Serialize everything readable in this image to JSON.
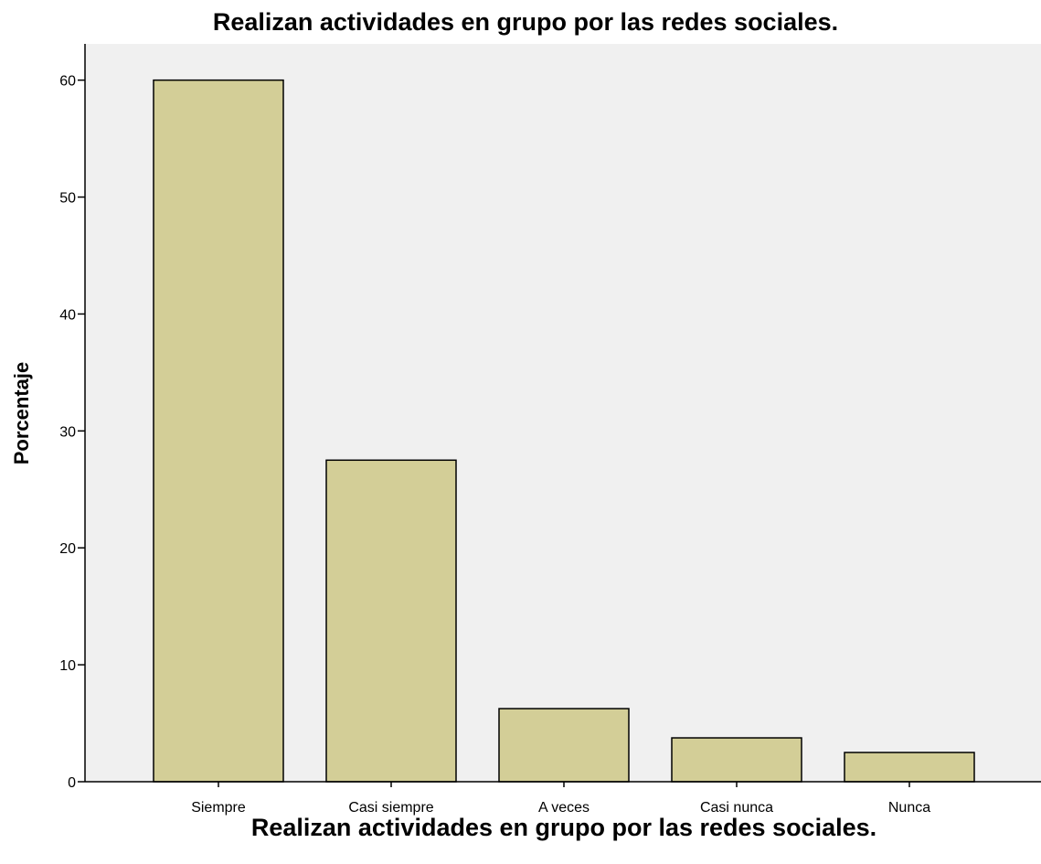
{
  "chart_data": {
    "type": "bar",
    "title": "Realizan actividades en grupo por las redes sociales.",
    "xlabel": "Realizan actividades en grupo por las redes sociales.",
    "ylabel": "Porcentaje",
    "categories": [
      "Siempre",
      "Casi siempre",
      "A veces",
      "Casi nunca",
      "Nunca"
    ],
    "values": [
      60.0,
      27.5,
      6.25,
      3.75,
      2.5
    ],
    "ylim": [
      0,
      63.1
    ],
    "yticks": [
      0,
      10,
      20,
      30,
      40,
      50,
      60
    ],
    "grid": false,
    "colors": {
      "bar_fill": "#d3ce97",
      "bar_stroke": "#000000",
      "plot_background": "#f0f0f0",
      "axis": "#000000"
    }
  }
}
